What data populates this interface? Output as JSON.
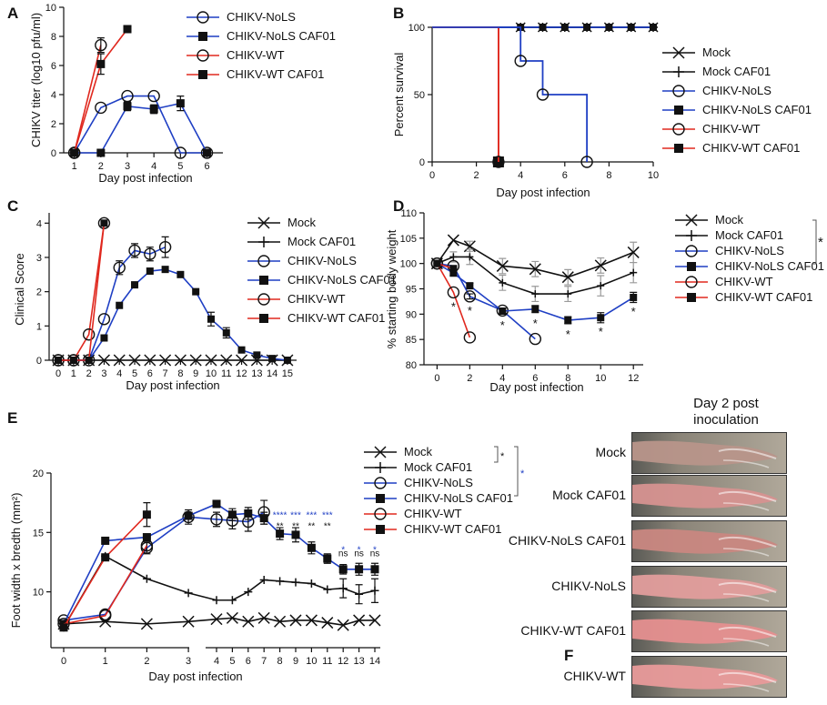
{
  "colors": {
    "mock": "#111111",
    "nols": "#1f3fc4",
    "wt": "#e0281e"
  },
  "chart_data": [
    {
      "panel": "A",
      "type": "line",
      "xlabel": "Day post infection",
      "ylabel": "CHIKV titer (log10 pfu/ml)",
      "x_ticks": [
        1,
        2,
        3,
        4,
        5,
        6
      ],
      "y_ticks": [
        0,
        2,
        4,
        6,
        8,
        10
      ],
      "xlim": [
        0.6,
        6.6
      ],
      "ylim": [
        0,
        10
      ],
      "legend": [
        "CHIKV-NoLS",
        "CHIKV-NoLS CAF01",
        "CHIKV-WT",
        "CHIKV-WT CAF01"
      ],
      "series": [
        {
          "name": "CHIKV-NoLS",
          "x": [
            1,
            2,
            3,
            4,
            5,
            6
          ],
          "values": [
            0,
            3.1,
            3.9,
            3.9,
            0,
            0
          ]
        },
        {
          "name": "CHIKV-NoLS CAF01",
          "x": [
            1,
            2,
            3,
            4,
            5,
            6
          ],
          "values": [
            0,
            0,
            3.2,
            3.0,
            3.4,
            0
          ],
          "err": [
            0,
            0,
            0.3,
            0.3,
            0.5,
            0
          ]
        },
        {
          "name": "CHIKV-WT",
          "x": [
            1,
            2
          ],
          "values": [
            0,
            7.4
          ],
          "err": [
            0,
            0.5
          ]
        },
        {
          "name": "CHIKV-WT CAF01",
          "x": [
            1,
            2,
            3
          ],
          "values": [
            0,
            6.1,
            8.5
          ],
          "err": [
            0,
            0.7,
            0
          ]
        }
      ]
    },
    {
      "panel": "B",
      "type": "line",
      "xlabel": "Day post infection",
      "ylabel": "Percent survival",
      "x_ticks": [
        0,
        2,
        4,
        6,
        8,
        10
      ],
      "y_ticks": [
        0,
        50,
        100
      ],
      "xlim": [
        0,
        10
      ],
      "ylim": [
        0,
        100
      ],
      "legend": [
        "Mock",
        "Mock CAF01",
        "CHIKV-NoLS",
        "CHIKV-NoLS CAF01",
        "CHIKV-WT",
        "CHIKV-WT CAF01"
      ],
      "series": [
        {
          "name": "Mock",
          "x": [
            0,
            10
          ],
          "values": [
            100,
            100
          ]
        },
        {
          "name": "Mock CAF01",
          "x": [
            0,
            10
          ],
          "values": [
            100,
            100
          ]
        },
        {
          "name": "CHIKV-NoLS",
          "x": [
            0,
            4,
            5,
            7
          ],
          "values": [
            100,
            75,
            50,
            0
          ]
        },
        {
          "name": "CHIKV-NoLS CAF01",
          "x": [
            0,
            10
          ],
          "values": [
            100,
            100
          ]
        },
        {
          "name": "CHIKV-WT",
          "x": [
            0,
            3
          ],
          "values": [
            100,
            0
          ]
        },
        {
          "name": "CHIKV-WT CAF01",
          "x": [
            0,
            3
          ],
          "values": [
            100,
            0
          ]
        }
      ]
    },
    {
      "panel": "C",
      "type": "line",
      "xlabel": "Day post infection",
      "ylabel": "Clinical Score",
      "x_ticks": [
        0,
        1,
        2,
        3,
        4,
        5,
        6,
        7,
        8,
        9,
        10,
        11,
        12,
        13,
        14,
        15
      ],
      "y_ticks": [
        0,
        1,
        2,
        3,
        4
      ],
      "xlim": [
        -0.6,
        15.6
      ],
      "ylim": [
        0,
        4.3
      ],
      "legend": [
        "Mock",
        "Mock CAF01",
        "CHIKV-NoLS",
        "CHIKV-NoLS CAF01",
        "CHIKV-WT",
        "CHIKV-WT CAF01"
      ],
      "series": [
        {
          "name": "Mock",
          "x": [
            0,
            1,
            2,
            3,
            4,
            5,
            6,
            7,
            8,
            9,
            10,
            11,
            12,
            13,
            14,
            15
          ],
          "values": [
            0,
            0,
            0,
            0,
            0,
            0,
            0,
            0,
            0,
            0,
            0,
            0,
            0,
            0,
            0,
            0
          ]
        },
        {
          "name": "CHIKV-NoLS",
          "x": [
            0,
            1,
            2,
            3,
            4,
            5,
            6,
            7
          ],
          "values": [
            0,
            0,
            0,
            1.2,
            2.7,
            3.2,
            3.1,
            3.3
          ],
          "err": [
            0,
            0,
            0,
            0,
            0.2,
            0.2,
            0.2,
            0.3
          ]
        },
        {
          "name": "CHIKV-NoLS CAF01",
          "x": [
            0,
            1,
            2,
            3,
            4,
            5,
            6,
            7,
            8,
            9,
            10,
            11,
            12,
            13,
            14,
            15
          ],
          "values": [
            0,
            0,
            0,
            0.65,
            1.6,
            2.2,
            2.6,
            2.65,
            2.5,
            2.0,
            1.2,
            0.8,
            0.3,
            0.15,
            0.05,
            0
          ],
          "err": [
            0,
            0,
            0,
            0,
            0,
            0,
            0,
            0,
            0,
            0,
            0.2,
            0.15,
            0,
            0,
            0,
            0
          ]
        },
        {
          "name": "CHIKV-WT",
          "x": [
            0,
            1,
            2,
            3
          ],
          "values": [
            0,
            0,
            0.75,
            4.0
          ]
        },
        {
          "name": "CHIKV-WT CAF01",
          "x": [
            0,
            1,
            2,
            3
          ],
          "values": [
            0,
            0,
            0,
            4.0
          ]
        }
      ]
    },
    {
      "panel": "D",
      "type": "line",
      "xlabel": "Day post infection",
      "ylabel": "% starting body weight",
      "x_ticks": [
        0,
        2,
        4,
        6,
        8,
        10,
        12
      ],
      "y_ticks": [
        80,
        85,
        90,
        95,
        100,
        105,
        110
      ],
      "xlim": [
        -0.8,
        12.6
      ],
      "ylim": [
        80,
        110
      ],
      "legend": [
        "Mock",
        "Mock CAF01",
        "CHIKV-NoLS",
        "CHIKV-NoLS CAF01",
        "CHIKV-WT",
        "CHIKV-WT CAF01"
      ],
      "significance": {
        "bracket": "*",
        "points": [
          {
            "x": 1,
            "label": "*"
          },
          {
            "x": 2,
            "label": "*"
          },
          {
            "x": 4,
            "label": "*"
          },
          {
            "x": 6,
            "label": "*"
          },
          {
            "x": 8,
            "label": "*"
          },
          {
            "x": 10,
            "label": "*"
          },
          {
            "x": 12,
            "label": "*"
          }
        ]
      },
      "series": [
        {
          "name": "Mock",
          "x": [
            0,
            1,
            2,
            4,
            6,
            8,
            10,
            12
          ],
          "values": [
            100,
            104.6,
            103.4,
            99.5,
            98.9,
            97.3,
            99.6,
            102.2
          ],
          "err": [
            0,
            0,
            1,
            1.5,
            1.5,
            1.5,
            1.5,
            2
          ]
        },
        {
          "name": "Mock CAF01",
          "x": [
            0,
            1,
            2,
            4,
            6,
            8,
            10,
            12
          ],
          "values": [
            100,
            101.3,
            101.3,
            96.2,
            94.0,
            94.0,
            95.6,
            98.2
          ],
          "err": [
            0,
            1,
            1.5,
            1.5,
            1.5,
            1.5,
            2,
            2
          ]
        },
        {
          "name": "CHIKV-NoLS",
          "x": [
            0,
            1,
            2,
            4,
            6
          ],
          "values": [
            100,
            99.5,
            93.5,
            90.7,
            85.1
          ],
          "err": [
            0,
            0,
            0.5,
            0.5,
            0
          ]
        },
        {
          "name": "CHIKV-NoLS CAF01",
          "x": [
            0,
            1,
            2,
            4,
            6,
            8,
            10,
            12
          ],
          "values": [
            100,
            98.1,
            95.6,
            90.6,
            91.0,
            88.8,
            89.3,
            93.3
          ],
          "err": [
            0,
            0.5,
            0.5,
            0.5,
            0.7,
            0.7,
            1,
            1
          ]
        },
        {
          "name": "CHIKV-WT",
          "x": [
            0,
            1,
            2
          ],
          "values": [
            100,
            94.3,
            85.4
          ]
        },
        {
          "name": "CHIKV-WT CAF01",
          "x": [
            0,
            1
          ],
          "values": [
            100,
            99.0
          ]
        }
      ]
    },
    {
      "panel": "E",
      "type": "line",
      "xlabel": "Day post infection",
      "ylabel": "Foot width x bredth (mm²)",
      "x_ticks_left": [
        0,
        1,
        2,
        3
      ],
      "x_ticks_right": [
        4,
        5,
        6,
        7,
        8,
        9,
        10,
        11,
        12,
        13,
        14
      ],
      "y_ticks": [
        10,
        15,
        20
      ],
      "ylim": [
        5.3,
        20
      ],
      "legend": [
        "Mock",
        "Mock CAF01",
        "CHIKV-NoLS",
        "CHIKV-NoLS CAF01",
        "CHIKV-WT",
        "CHIKV-WT CAF01"
      ],
      "legend_brackets": [
        "*",
        "*"
      ],
      "significance": {
        "blue_row": [
          {
            "x": 8,
            "label": "****"
          },
          {
            "x": 9,
            "label": "***"
          },
          {
            "x": 10,
            "label": "***"
          },
          {
            "x": 11,
            "label": "***"
          },
          {
            "x": 12,
            "label": "*"
          },
          {
            "x": 13,
            "label": "*"
          },
          {
            "x": 14,
            "label": "*"
          }
        ],
        "black_row": [
          {
            "x": 8,
            "label": "**"
          },
          {
            "x": 9,
            "label": "**"
          },
          {
            "x": 10,
            "label": "**"
          },
          {
            "x": 11,
            "label": "**"
          },
          {
            "x": 12,
            "label": "ns"
          },
          {
            "x": 13,
            "label": "ns"
          },
          {
            "x": 14,
            "label": "ns"
          }
        ]
      },
      "series": [
        {
          "name": "Mock",
          "x": [
            0,
            1,
            2,
            3,
            4,
            5,
            6,
            7,
            8,
            9,
            10,
            11,
            12,
            13,
            14
          ],
          "values": [
            7.3,
            7.5,
            7.3,
            7.5,
            7.7,
            7.8,
            7.5,
            7.8,
            7.5,
            7.6,
            7.6,
            7.4,
            7.2,
            7.6,
            7.6
          ],
          "err": [
            0,
            0,
            0,
            0,
            0,
            0,
            0,
            0,
            0,
            0,
            0,
            0,
            0,
            0,
            0
          ]
        },
        {
          "name": "Mock CAF01",
          "x": [
            0,
            1,
            2,
            3,
            4,
            5,
            6,
            7,
            8,
            9,
            10,
            11,
            12,
            13,
            14
          ],
          "values": [
            7.0,
            13.0,
            11.1,
            9.9,
            9.3,
            9.3,
            10.0,
            11.0,
            10.9,
            10.8,
            10.7,
            10.2,
            10.3,
            9.8,
            10.1
          ],
          "err": [
            0,
            0,
            0,
            0,
            0,
            0,
            0,
            0,
            0,
            0,
            0,
            0,
            0.8,
            0.8,
            1.0
          ]
        },
        {
          "name": "CHIKV-NoLS",
          "x": [
            0,
            1,
            2,
            3,
            4,
            5,
            6,
            7
          ],
          "values": [
            7.6,
            8.1,
            13.7,
            16.3,
            16.1,
            16.0,
            15.9,
            16.7
          ],
          "err": [
            0,
            0,
            0.5,
            0.6,
            0.6,
            0.7,
            0.8,
            1.0
          ]
        },
        {
          "name": "CHIKV-NoLS CAF01",
          "x": [
            0,
            1,
            2,
            3,
            4,
            5,
            6,
            7,
            8,
            9,
            10,
            11,
            12,
            13,
            14
          ],
          "values": [
            7.3,
            14.3,
            14.6,
            16.4,
            17.4,
            16.5,
            16.6,
            16.2,
            14.9,
            14.8,
            13.7,
            12.8,
            11.9,
            11.9,
            11.9
          ],
          "err": [
            0,
            0,
            0,
            0,
            0.3,
            0.5,
            0.5,
            0.5,
            0.5,
            0.6,
            0.5,
            0.4,
            0.4,
            0.5,
            0.5
          ]
        },
        {
          "name": "CHIKV-WT",
          "x": [
            0,
            1,
            2
          ],
          "values": [
            7.3,
            8.0,
            13.9
          ]
        },
        {
          "name": "CHIKV-WT CAF01",
          "x": [
            0,
            1,
            2
          ],
          "values": [
            7.0,
            12.9,
            16.5
          ],
          "err": [
            0,
            0,
            1.0
          ]
        }
      ]
    }
  ],
  "panel_f": {
    "label": "F",
    "title_line1": "Day 2 post",
    "title_line2": "inoculation",
    "photos": [
      {
        "label": "Mock",
        "tone": "#b8958a"
      },
      {
        "label": "Mock CAF01",
        "tone": "#d69290"
      },
      {
        "label": "CHIKV-NoLS CAF01",
        "tone": "#c98781"
      },
      {
        "label": "CHIKV-NoLS",
        "tone": "#e19d9c"
      },
      {
        "label": "CHIKV-WT CAF01",
        "tone": "#e58f8f"
      },
      {
        "label": "CHIKV-WT",
        "tone": "#e89a9a"
      }
    ]
  }
}
